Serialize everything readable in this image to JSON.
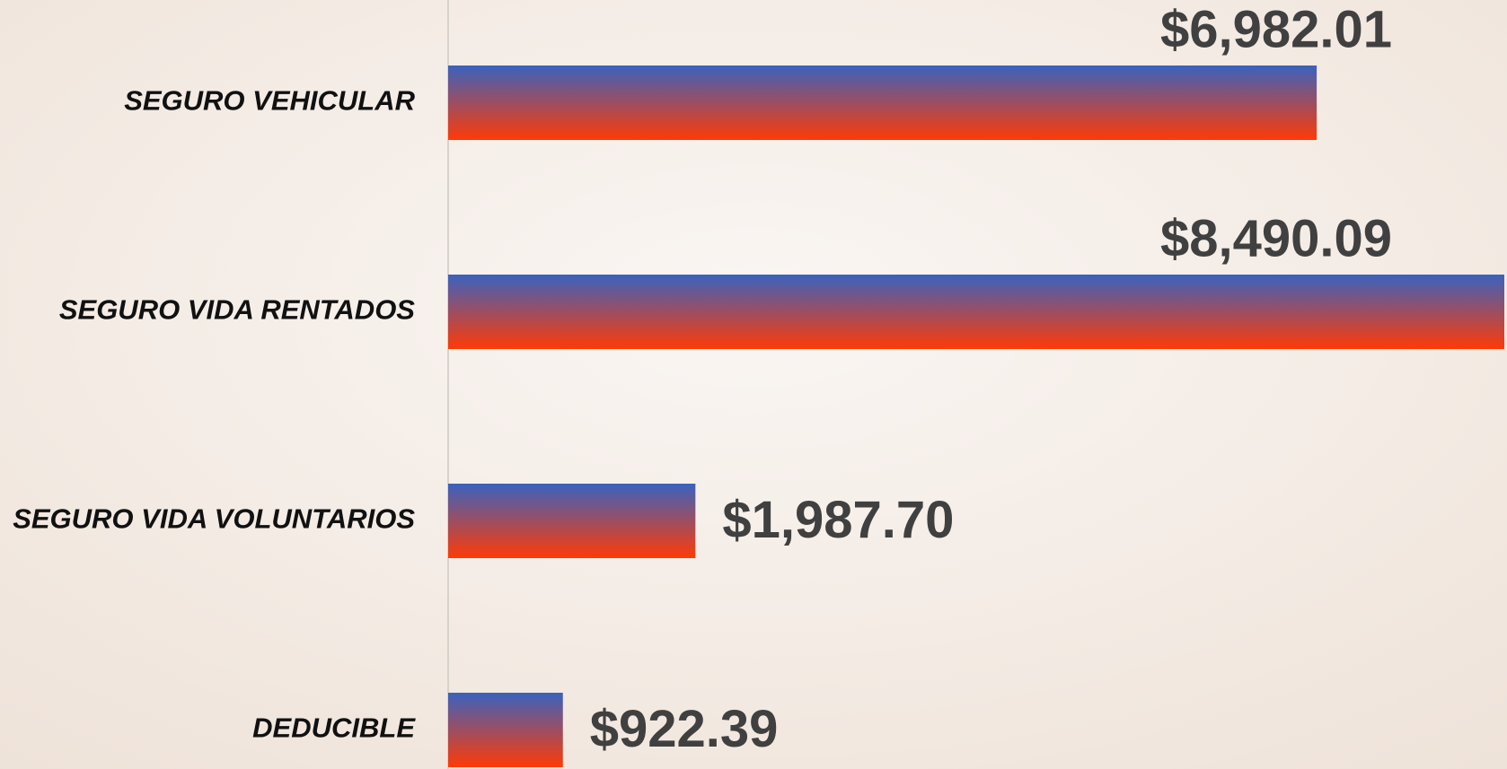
{
  "chart_data": {
    "type": "bar",
    "orientation": "horizontal",
    "categories": [
      "SEGURO VEHICULAR",
      "SEGURO VIDA RENTADOS",
      "SEGURO VIDA VOLUNTARIOS",
      "DEDUCIBLE"
    ],
    "values": [
      6982.01,
      8490.09,
      1987.7,
      922.39
    ],
    "value_labels": [
      "$6,982.01",
      "$8,490.09",
      "$1,987.70",
      "$922.39"
    ],
    "colors": [
      "#3a62be",
      "#ff3a06"
    ],
    "xlim": [
      0,
      8490.09
    ]
  }
}
